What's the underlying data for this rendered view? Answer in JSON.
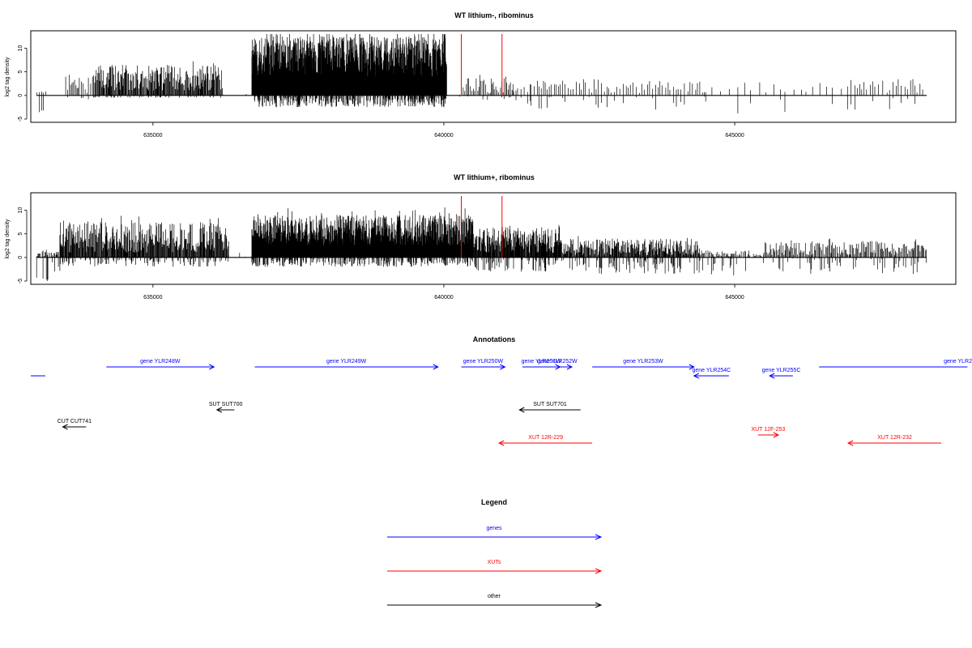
{
  "colors": {
    "signal": "#000000",
    "marker": "#ff0000",
    "genes": "#0000ff",
    "xuts": "#ff0000",
    "other": "#000000",
    "frame": "#000000"
  },
  "chart_data": [
    {
      "type": "bar",
      "title": "WT lithium-, ribominus",
      "ylabel": "log2 tag density",
      "xlim": [
        632900,
        648800
      ],
      "ylim": [
        -5,
        13
      ],
      "yticks": [
        -5,
        0,
        5,
        10
      ],
      "xticks": [
        635000,
        640000,
        645000
      ],
      "markers": [
        640300,
        641000
      ],
      "regions": [
        {
          "from": 633000,
          "to": 633200,
          "pos": [
            0,
            1
          ],
          "neg": [
            0,
            4
          ],
          "density": 0.4
        },
        {
          "from": 633200,
          "to": 633500,
          "pos": [
            0,
            0
          ],
          "neg": [
            0,
            1
          ],
          "density": 0.05
        },
        {
          "from": 633500,
          "to": 634000,
          "pos": [
            0.5,
            4.5
          ],
          "neg": [
            0,
            1
          ],
          "density": 0.5
        },
        {
          "from": 634000,
          "to": 636200,
          "pos": [
            1,
            6.5
          ],
          "neg": [
            0,
            0.5
          ],
          "density": 1.2
        },
        {
          "from": 636200,
          "to": 636700,
          "pos": [
            0,
            0.5
          ],
          "neg": [
            0,
            2
          ],
          "density": 0.05
        },
        {
          "from": 636700,
          "to": 640050,
          "pos": [
            4,
            12.5
          ],
          "neg": [
            0,
            2.5
          ],
          "density": 3
        },
        {
          "from": 640050,
          "to": 640300,
          "pos": [
            0,
            0.5
          ],
          "neg": [
            0,
            0.5
          ],
          "density": 0.05
        },
        {
          "from": 640300,
          "to": 641200,
          "pos": [
            0.5,
            4
          ],
          "neg": [
            0,
            1
          ],
          "density": 0.6
        },
        {
          "from": 641200,
          "to": 641500,
          "pos": [
            0.5,
            2.5
          ],
          "neg": [
            0,
            3
          ],
          "density": 0.3
        },
        {
          "from": 641500,
          "to": 644500,
          "pos": [
            0.5,
            3.5
          ],
          "neg": [
            0,
            3
          ],
          "density": 0.3
        },
        {
          "from": 644500,
          "to": 647000,
          "pos": [
            0.5,
            2.5
          ],
          "neg": [
            0,
            4
          ],
          "density": 0.12
        },
        {
          "from": 647000,
          "to": 648300,
          "pos": [
            0.5,
            3.5
          ],
          "neg": [
            0,
            3
          ],
          "density": 0.25
        }
      ]
    },
    {
      "type": "bar",
      "title": "WT lithium+, ribominus",
      "ylabel": "log2 tag density",
      "xlim": [
        632900,
        648800
      ],
      "ylim": [
        -5,
        13
      ],
      "yticks": [
        -5,
        0,
        5,
        10
      ],
      "xticks": [
        635000,
        640000,
        645000
      ],
      "markers": [
        640300,
        641000
      ],
      "regions": [
        {
          "from": 633000,
          "to": 633400,
          "pos": [
            0,
            1.5
          ],
          "neg": [
            0,
            5
          ],
          "density": 1
        },
        {
          "from": 633400,
          "to": 636300,
          "pos": [
            1,
            7.5
          ],
          "neg": [
            0,
            2
          ],
          "density": 1.4
        },
        {
          "from": 636300,
          "to": 636700,
          "pos": [
            0,
            1
          ],
          "neg": [
            0,
            3
          ],
          "density": 0.1
        },
        {
          "from": 636700,
          "to": 640500,
          "pos": [
            2.5,
            9
          ],
          "neg": [
            0,
            2
          ],
          "density": 2.5
        },
        {
          "from": 640500,
          "to": 642000,
          "pos": [
            1,
            6.5
          ],
          "neg": [
            0,
            3
          ],
          "density": 1.6
        },
        {
          "from": 642000,
          "to": 644400,
          "pos": [
            0.5,
            4
          ],
          "neg": [
            0,
            3.5
          ],
          "density": 1.3
        },
        {
          "from": 644400,
          "to": 645500,
          "pos": [
            0,
            1.5
          ],
          "neg": [
            0,
            4
          ],
          "density": 0.8
        },
        {
          "from": 645500,
          "to": 648300,
          "pos": [
            0.5,
            3.5
          ],
          "neg": [
            0,
            3.5
          ],
          "density": 0.8
        }
      ]
    }
  ],
  "annotations_title": "Annotations",
  "annotations": [
    {
      "label": "",
      "kind": "gene",
      "start": 632350,
      "end": 633150,
      "dir": "none",
      "row": 1
    },
    {
      "label": "gene YLR248W",
      "kind": "gene",
      "start": 634200,
      "end": 636050,
      "dir": "right",
      "row": 0
    },
    {
      "label": "gene YLR249W",
      "kind": "gene",
      "start": 636750,
      "end": 639900,
      "dir": "right",
      "row": 0
    },
    {
      "label": "gene YLR250W",
      "kind": "gene",
      "start": 640300,
      "end": 641050,
      "dir": "right",
      "row": 0
    },
    {
      "label": "gene YLR251W",
      "kind": "gene",
      "start": 641350,
      "end": 642000,
      "dir": "right",
      "row": 0
    },
    {
      "label": "gene YLR252W",
      "kind": "gene",
      "start": 641700,
      "end": 642200,
      "dir": "right",
      "row": 0
    },
    {
      "label": "gene YLR253W",
      "kind": "gene",
      "start": 642550,
      "end": 644300,
      "dir": "right",
      "row": 0
    },
    {
      "label": "gene YLR254C",
      "kind": "gene",
      "start": 644300,
      "end": 644900,
      "dir": "left",
      "row": 1
    },
    {
      "label": "gene YLR255C",
      "kind": "gene",
      "start": 645600,
      "end": 646000,
      "dir": "left",
      "row": 1
    },
    {
      "label": "gene YLR2",
      "kind": "gene",
      "start": 646450,
      "end": 649000,
      "dir": "none",
      "row": 0,
      "label_at_end": true
    },
    {
      "label": "SUT SUT700",
      "kind": "other",
      "start": 636100,
      "end": 636400,
      "dir": "left",
      "row": 2
    },
    {
      "label": "SUT SUT701",
      "kind": "other",
      "start": 641300,
      "end": 642350,
      "dir": "left",
      "row": 2
    },
    {
      "label": "CUT CUT741",
      "kind": "other",
      "start": 633450,
      "end": 633850,
      "dir": "left",
      "row": 3
    },
    {
      "label": "XUT 12R-229",
      "kind": "xut",
      "start": 640950,
      "end": 642550,
      "dir": "left",
      "row": 4
    },
    {
      "label": "XUT 12F-253",
      "kind": "xut",
      "start": 645400,
      "end": 645750,
      "dir": "right",
      "row": 5
    },
    {
      "label": "XUT 12R-232",
      "kind": "xut",
      "start": 646950,
      "end": 648550,
      "dir": "left",
      "row": 4
    }
  ],
  "legend": {
    "title": "Legend",
    "items": [
      {
        "label": "genes",
        "kind": "gene"
      },
      {
        "label": "XUTs",
        "kind": "xut"
      },
      {
        "label": "other",
        "kind": "other"
      }
    ]
  }
}
